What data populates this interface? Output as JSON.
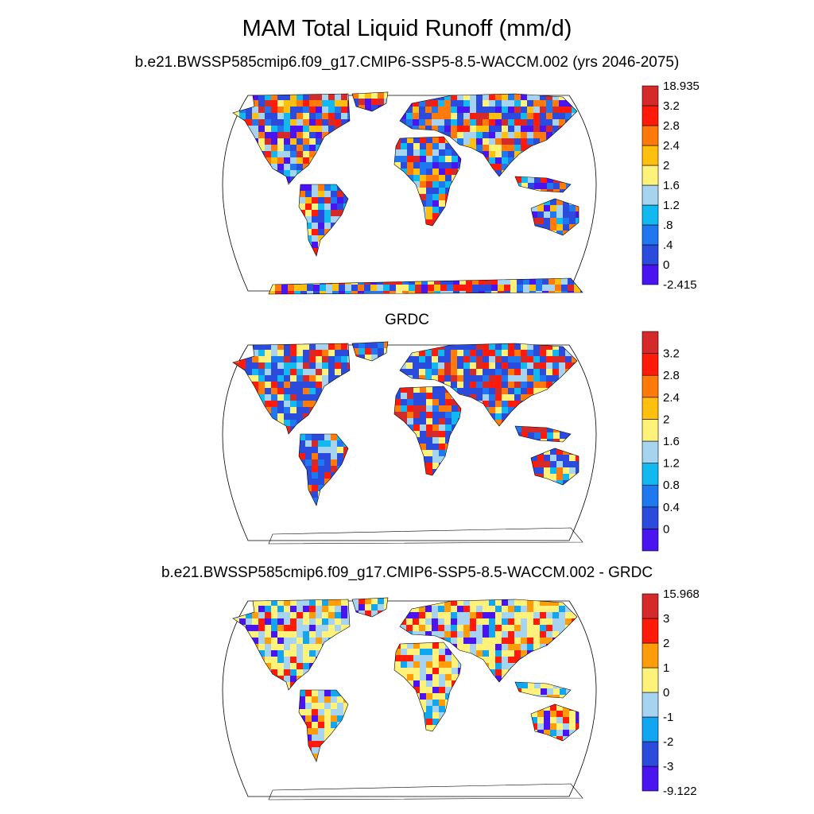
{
  "main_title": "MAM Total Liquid Runoff (mm/d)",
  "chart_data": [
    {
      "type": "heatmap",
      "subtitle": "b.e21.BWSSP585cmip6.f09_g17.CMIP6-SSP5-8.5-WACCM.002 (yrs 2046-2075)",
      "projection": "Robinson world map",
      "colorbar": {
        "colors": [
          "#4a14f0",
          "#2b4bdc",
          "#1f78f0",
          "#12b8f0",
          "#a6d4f0",
          "#fff27a",
          "#ffbf0f",
          "#ff7a0a",
          "#ff1a0a",
          "#d42a2a"
        ],
        "labels": [
          "-2.415",
          "0",
          ".4",
          ".8",
          "1.2",
          "1.6",
          "2",
          "2.4",
          "2.8",
          "3.2",
          "18.935"
        ]
      }
    },
    {
      "type": "heatmap",
      "subtitle": "GRDC",
      "projection": "Robinson world map",
      "colorbar": {
        "colors": [
          "#4a14f0",
          "#2b4bdc",
          "#1f78f0",
          "#12b8f0",
          "#a6d4f0",
          "#fff27a",
          "#ffbf0f",
          "#ff7a0a",
          "#ff1a0a",
          "#d42a2a"
        ],
        "labels": [
          "",
          "0",
          "0.4",
          "0.8",
          "1.2",
          "1.6",
          "2",
          "2.4",
          "2.8",
          "3.2",
          ""
        ]
      }
    },
    {
      "type": "heatmap",
      "subtitle": "b.e21.BWSSP585cmip6.f09_g17.CMIP6-SSP5-8.5-WACCM.002 - GRDC",
      "projection": "Robinson world map",
      "colorbar": {
        "colors": [
          "#4a14f0",
          "#2b4bdc",
          "#12a6f0",
          "#a6d4f0",
          "#fff27a",
          "#ff9c0a",
          "#ff1a0a",
          "#d42a2a"
        ],
        "labels": [
          "-9.122",
          "-3",
          "-2",
          "-1",
          "0",
          "1",
          "2",
          "3",
          "15.968"
        ]
      }
    }
  ]
}
